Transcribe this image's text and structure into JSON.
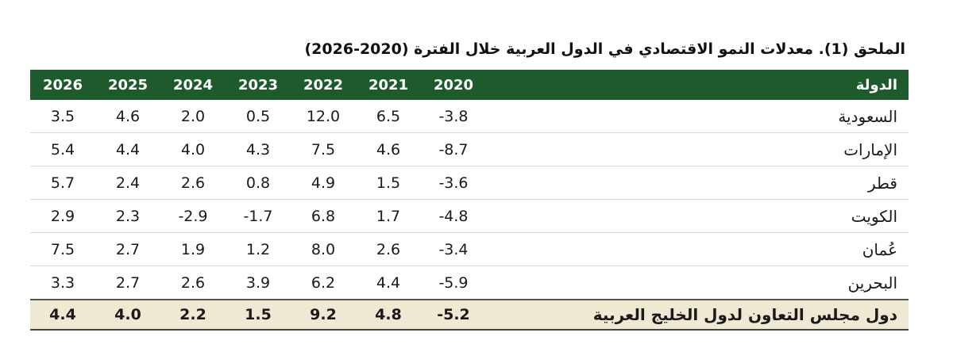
{
  "title": "الملحق (1). معدلات النمو الاقتصادي في الدول العربية خلال الفترة (2020-2026)",
  "header": {
    "country": "الدولة",
    "years": [
      "2026",
      "2025",
      "2024",
      "2023",
      "2022",
      "2021",
      "2020"
    ]
  },
  "rows": [
    {
      "country": "السعودية",
      "values": [
        "3.5",
        "4.6",
        "2.0",
        "0.5",
        "12.0",
        "6.5",
        "-3.8"
      ]
    },
    {
      "country": "الإمارات",
      "values": [
        "5.4",
        "4.4",
        "4.0",
        "4.3",
        "7.5",
        "4.6",
        "-8.7"
      ]
    },
    {
      "country": "قطر",
      "values": [
        "5.7",
        "2.4",
        "2.6",
        "0.8",
        "4.9",
        "1.5",
        "-3.6"
      ]
    },
    {
      "country": "الكويت",
      "values": [
        "2.9",
        "2.3",
        "-2.9",
        "-1.7",
        "6.8",
        "1.7",
        "-4.8"
      ]
    },
    {
      "country": "عُمان",
      "values": [
        "7.5",
        "2.7",
        "1.9",
        "1.2",
        "8.0",
        "2.6",
        "-3.4"
      ]
    },
    {
      "country": "البحرين",
      "values": [
        "3.3",
        "2.7",
        "2.6",
        "3.9",
        "6.2",
        "4.4",
        "-5.9"
      ]
    }
  ],
  "total": {
    "country": "دول مجلس التعاون لدول الخليج العربية",
    "values": [
      "4.4",
      "4.0",
      "2.2",
      "1.5",
      "9.2",
      "4.8",
      "-5.2"
    ]
  },
  "colors": {
    "header_bg": "#1e5b2c",
    "total_bg": "#efe8d2"
  }
}
